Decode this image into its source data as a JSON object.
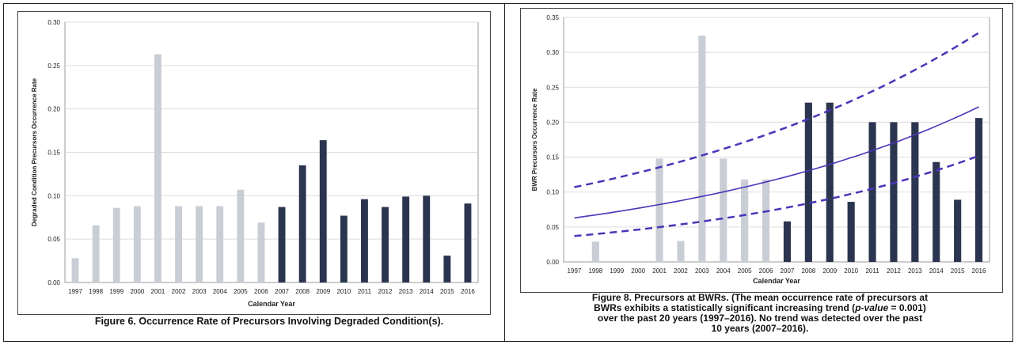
{
  "chart_data": [
    {
      "type": "bar",
      "title": "Figure 6.  Occurrence Rate of Precursors Involving Degraded Condition(s).",
      "xlabel": "Calendar Year",
      "ylabel": "Degraded Condition Precursors Occurrence Rate",
      "ylim": [
        0,
        0.3
      ],
      "yticks": [
        "0.00",
        "0.05",
        "0.10",
        "0.15",
        "0.20",
        "0.25",
        "0.30"
      ],
      "categories": [
        "1997",
        "1998",
        "1999",
        "2000",
        "2001",
        "2002",
        "2003",
        "2004",
        "2005",
        "2006",
        "2007",
        "2008",
        "2009",
        "2010",
        "2011",
        "2012",
        "2013",
        "2014",
        "2015",
        "2016"
      ],
      "values": [
        0.028,
        0.066,
        0.086,
        0.088,
        0.263,
        0.088,
        0.088,
        0.088,
        0.107,
        0.069,
        0.087,
        0.135,
        0.164,
        0.077,
        0.096,
        0.087,
        0.099,
        0.1,
        0.031,
        0.091
      ],
      "colors": {
        "early": "#c9ced6",
        "recent": "#2b3550"
      },
      "grid": true
    },
    {
      "type": "bar",
      "title": "Figure 8.  Precursors at BWRs.  (The mean occurrence rate of precursors at BWRs exhibits a statistically significant increasing trend (p-value = 0.001) over the past 20 years (1997–2016).  No trend was detected over the past 10 years (2007–2016).",
      "caption_lines": [
        "Figure 8.  Precursors at BWRs.  (The mean occurrence rate of precursors at",
        "BWRs exhibits a statistically significant increasing trend (",
        "p-value",
        " = 0.001)",
        "over the past 20 years (1997–2016).  No trend was detected over the past",
        "10 years (2007–2016)."
      ],
      "xlabel": "Calendar Year",
      "ylabel": "BWR Precursors Occurrence Rate",
      "ylim": [
        0,
        0.35
      ],
      "yticks": [
        "0.00",
        "0.05",
        "0.10",
        "0.15",
        "0.20",
        "0.25",
        "0.30",
        "0.35"
      ],
      "categories": [
        "1997",
        "1998",
        "1999",
        "2000",
        "2001",
        "2002",
        "2003",
        "2004",
        "2005",
        "2006",
        "2007",
        "2008",
        "2009",
        "2010",
        "2011",
        "2012",
        "2013",
        "2014",
        "2015",
        "2016"
      ],
      "values": [
        0,
        0.029,
        0,
        0,
        0.148,
        0.03,
        0.324,
        0.148,
        0.118,
        0.118,
        0.058,
        0.228,
        0.228,
        0.086,
        0.2,
        0.2,
        0.2,
        0.143,
        0.089,
        0.206
      ],
      "trend": {
        "mean": {
          "start": 0.063,
          "end": 0.222
        },
        "upper": {
          "start": 0.107,
          "end": 0.328
        },
        "lower": {
          "start": 0.037,
          "end": 0.152
        }
      },
      "colors": {
        "early": "#c9ced6",
        "recent": "#2b3550",
        "trend": "#4b34b8"
      },
      "grid": true
    }
  ]
}
